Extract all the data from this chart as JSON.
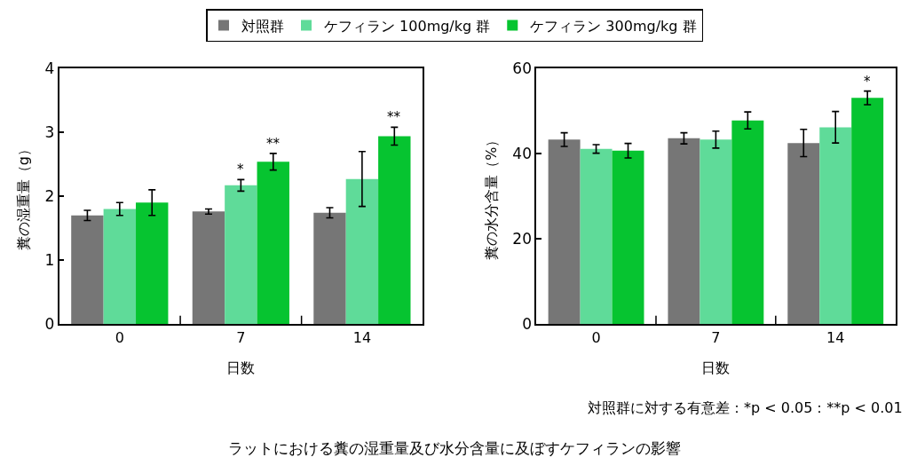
{
  "chart_data": [
    {
      "type": "bar",
      "categories": [
        "0",
        "7",
        "14"
      ],
      "xlabel": "日数",
      "ylabel": "糞の湿重量（g）",
      "ylim": [
        0,
        4
      ],
      "yticks": [
        0,
        1,
        2,
        3,
        4
      ],
      "legend": "top",
      "series": [
        {
          "name": "対照群",
          "color": "#767676",
          "values": [
            1.7,
            1.76,
            1.74
          ],
          "errors": [
            0.08,
            0.04,
            0.08
          ]
        },
        {
          "name": "ケフィラン 100mg/kg 群",
          "color": "#5fdb99",
          "values": [
            1.8,
            2.17,
            2.27
          ],
          "errors": [
            0.1,
            0.09,
            0.43
          ],
          "value_labels": [
            null,
            "*",
            null
          ]
        },
        {
          "name": "ケフィラン 300mg/kg 群",
          "color": "#06c430",
          "values": [
            1.9,
            2.54,
            2.94
          ],
          "errors": [
            0.2,
            0.13,
            0.14
          ],
          "value_labels": [
            null,
            "**",
            "**"
          ]
        }
      ]
    },
    {
      "type": "bar",
      "categories": [
        "0",
        "7",
        "14"
      ],
      "xlabel": "日数",
      "ylabel": "糞の水分含量（%）",
      "ylim": [
        0,
        60
      ],
      "yticks": [
        0,
        20,
        40,
        60
      ],
      "series": [
        {
          "color": "#767676",
          "values": [
            43.3,
            43.6,
            42.5
          ],
          "errors": [
            1.6,
            1.3,
            3.2
          ]
        },
        {
          "color": "#5fdb99",
          "values": [
            41.1,
            43.3,
            46.2
          ],
          "errors": [
            1.0,
            2.0,
            3.7
          ]
        },
        {
          "color": "#06c430",
          "values": [
            40.7,
            47.8,
            53.1
          ],
          "errors": [
            1.7,
            2.0,
            1.6
          ],
          "value_labels": [
            null,
            null,
            "*"
          ]
        }
      ],
      "annotations": [
        "対照群に対する有意差：*p < 0.05：**p < 0.01",
        "ラットにおける糞の湿重量及び水分含量に及ぼすケフィランの影響"
      ]
    }
  ]
}
